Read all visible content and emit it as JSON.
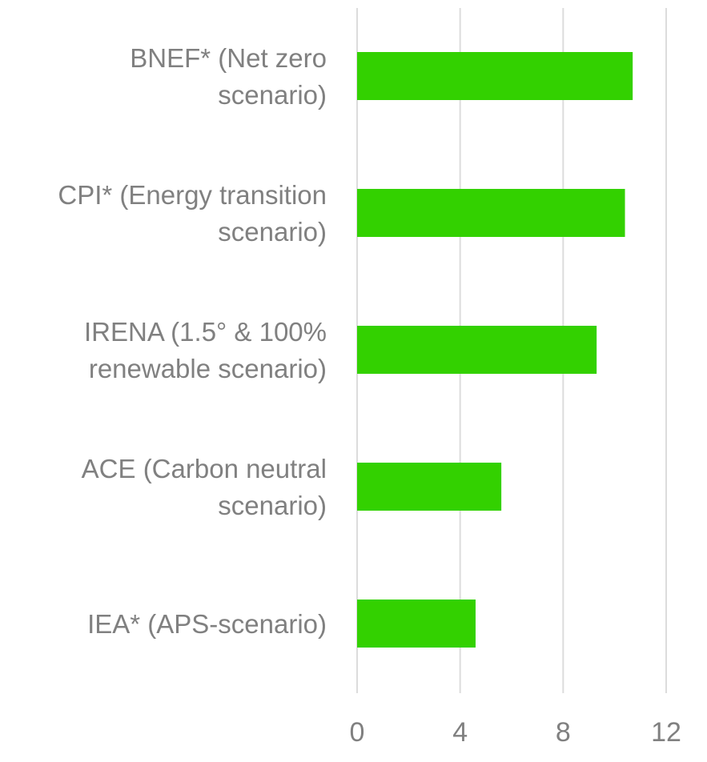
{
  "chart_data": {
    "type": "bar",
    "orientation": "horizontal",
    "title": "",
    "xlabel": "",
    "ylabel": "",
    "categories": [
      [
        "BNEF* (Net zero",
        "scenario)"
      ],
      [
        "CPI* (Energy transition",
        "scenario)"
      ],
      [
        "IRENA (1.5° & 100%",
        "renewable scenario)"
      ],
      [
        "ACE (Carbon neutral",
        "scenario)"
      ],
      [
        "IEA* (APS-scenario)"
      ]
    ],
    "values": [
      10.7,
      10.4,
      9.3,
      5.6,
      4.6
    ],
    "xlim": [
      0,
      12
    ],
    "xticks": [
      "0",
      "4",
      "8",
      "12"
    ],
    "xtick_values": [
      0,
      4,
      8,
      12
    ],
    "grid": true,
    "legend": "none",
    "bar_color": "#33d100",
    "gridline_color": "#dcdcdc",
    "label_color": "#808080"
  }
}
